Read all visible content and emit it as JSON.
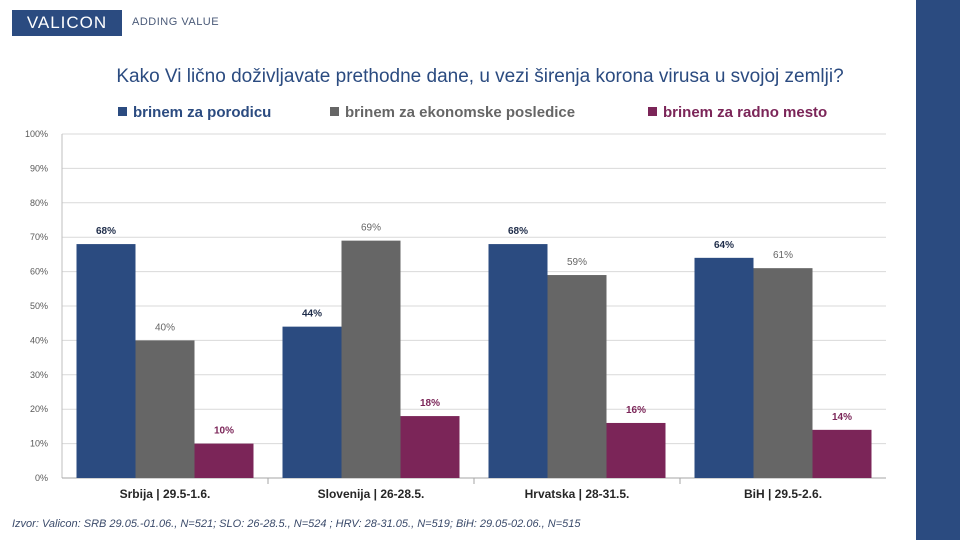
{
  "header": {
    "logo": "VALICON",
    "tagline": "ADDING VALUE"
  },
  "colors": {
    "brand": "#2b4b80",
    "series1": "#2b4b80",
    "series2": "#666666",
    "series3": "#7b2558"
  },
  "source": "Izvor: Valicon: SRB 29.05.-01.06., N=521; SLO: 26-28.5., N=524 ; HRV: 28-31.05., N=519; BiH: 29.05-02.06., N=515",
  "chart_data": {
    "type": "bar",
    "title": "Kako Vi lično doživljavate prethodne dane, u vezi širenja korona virusa u svojoj zemlji?",
    "categories": [
      "Srbija | 29.5-1.6.",
      "Slovenija | 26-28.5.",
      "Hrvatska | 28-31.5.",
      "BiH | 29.5-2.6."
    ],
    "series": [
      {
        "name": "brinem za porodicu",
        "values": [
          68,
          44,
          68,
          64
        ],
        "color": "#2b4b80"
      },
      {
        "name": "brinem za ekonomske posledice",
        "values": [
          40,
          69,
          59,
          61
        ],
        "color": "#666666"
      },
      {
        "name": "brinem za radno mesto",
        "values": [
          10,
          18,
          16,
          14
        ],
        "color": "#7b2558"
      }
    ],
    "yticks": [
      "0%",
      "10%",
      "20%",
      "30%",
      "40%",
      "50%",
      "60%",
      "70%",
      "80%",
      "90%",
      "100%"
    ],
    "ylim": [
      0,
      100
    ],
    "value_suffix": "%",
    "grid": true,
    "legend_position": "top"
  }
}
